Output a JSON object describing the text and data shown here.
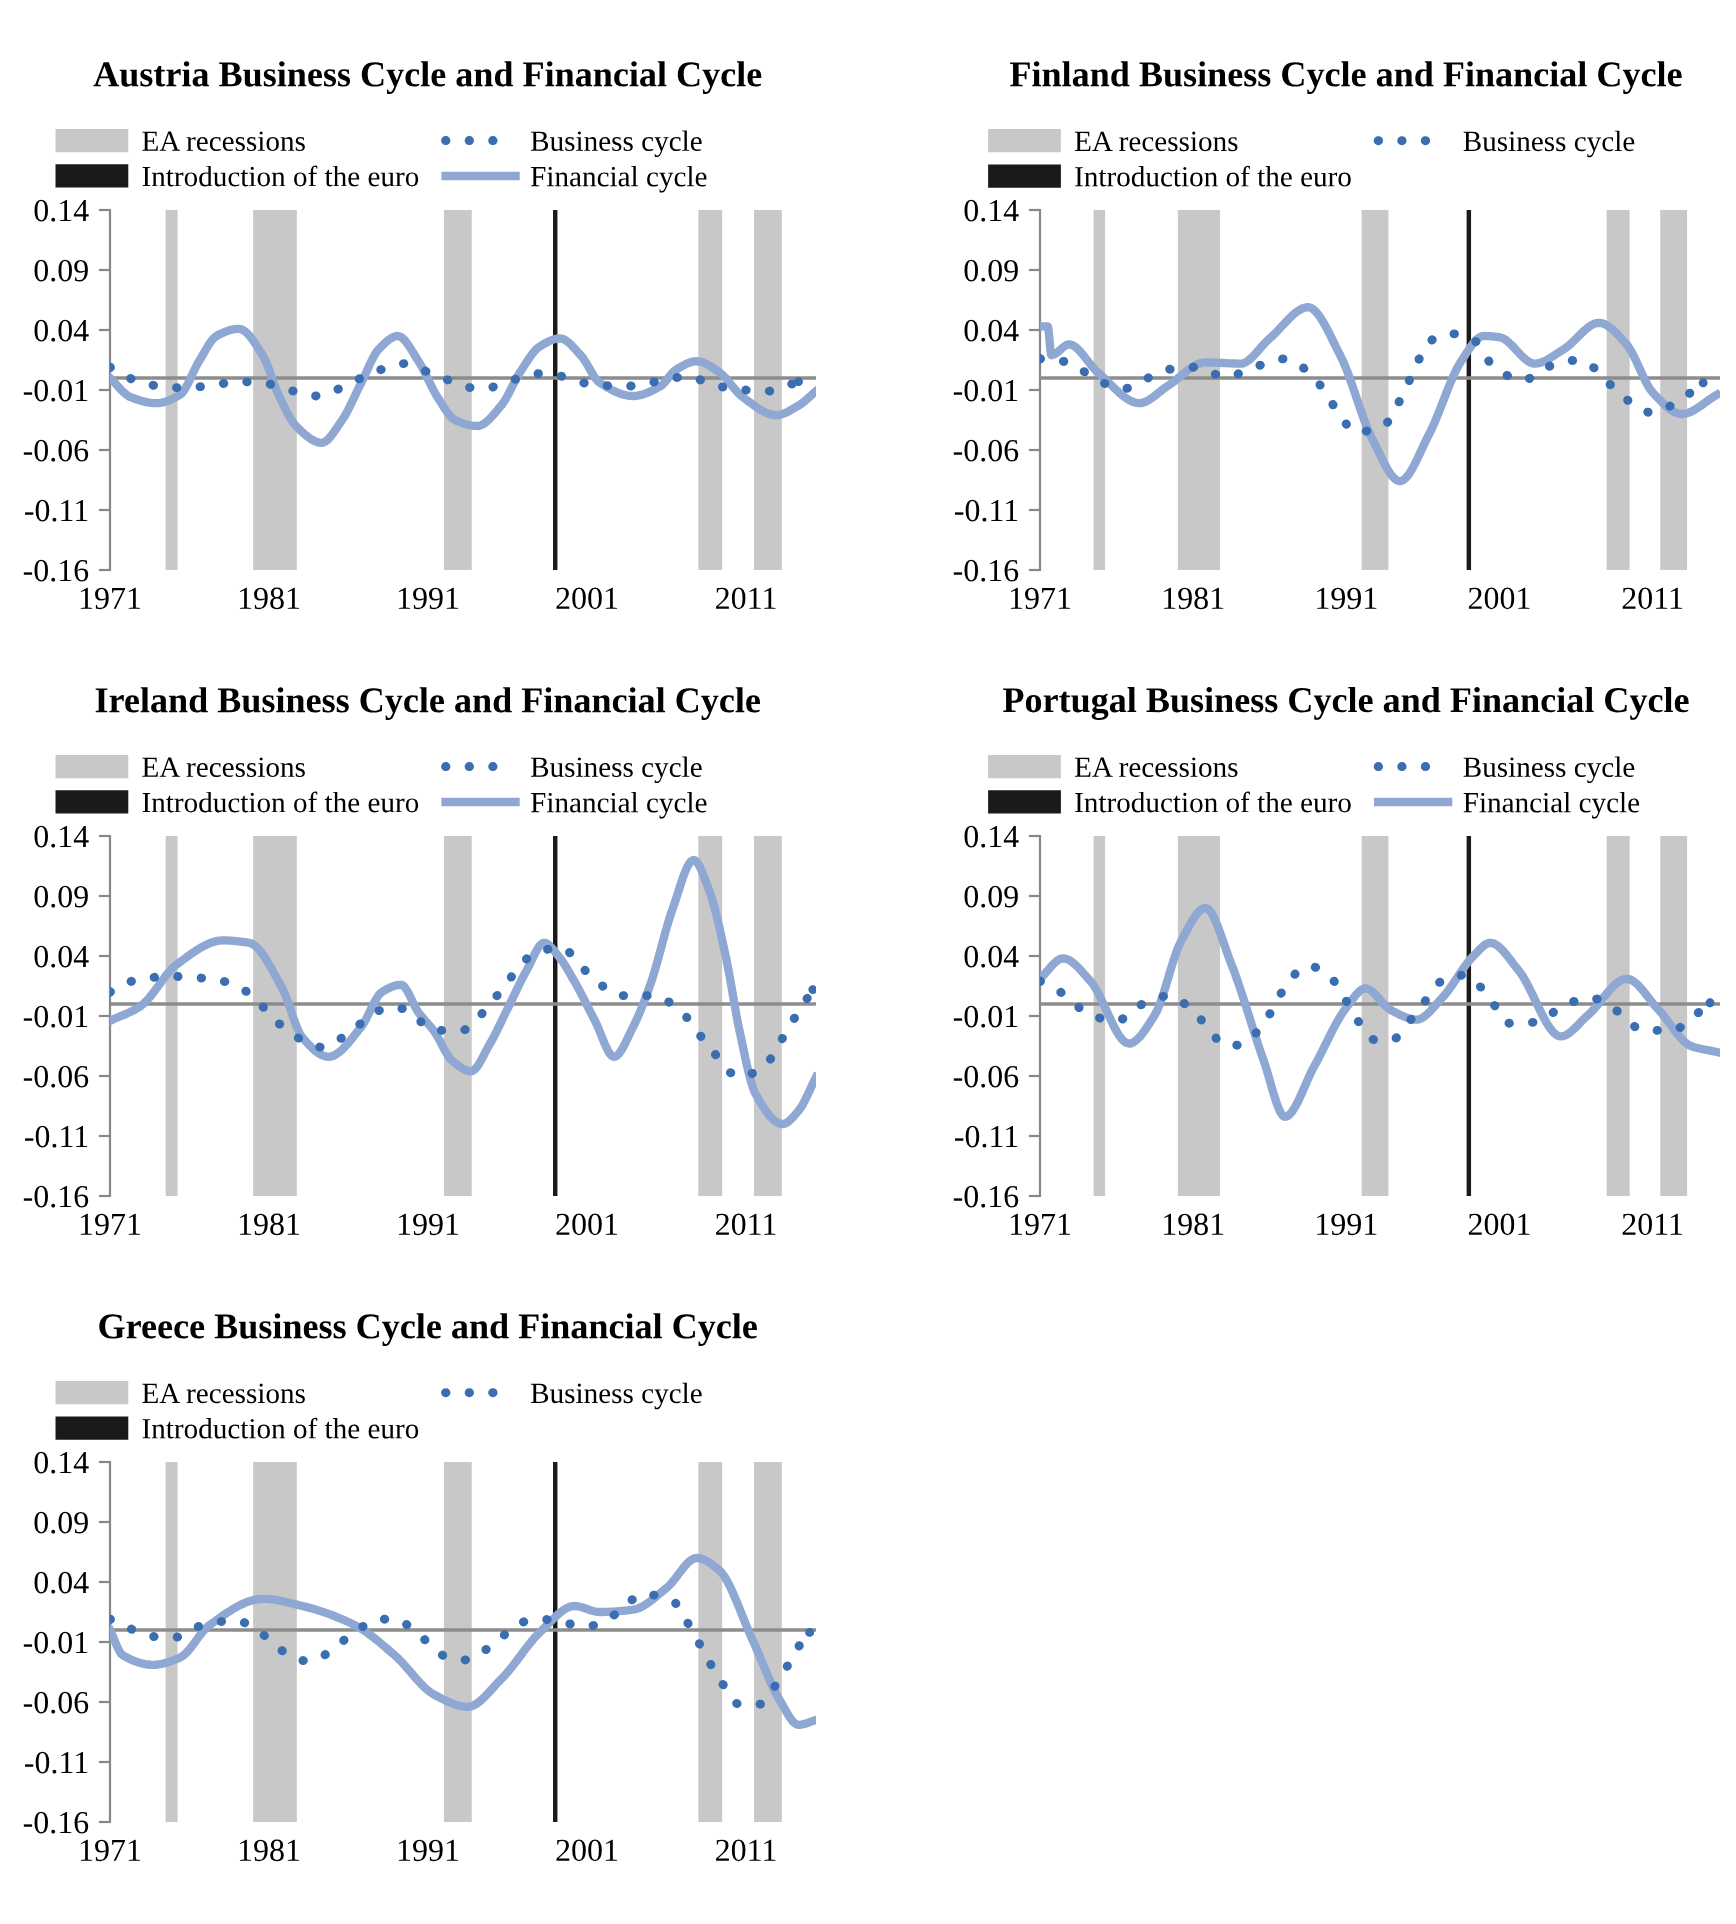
{
  "chart_data": [
    {
      "type": "line",
      "title": "Austria Business Cycle and Financial Cycle",
      "xlim": [
        1971,
        2015.4
      ],
      "xticks": [
        1971,
        1981,
        1991,
        2001,
        2011
      ],
      "ylim": [
        -0.16,
        0.14
      ],
      "yticks": [
        -0.16,
        -0.11,
        -0.06,
        -0.01,
        0.04,
        0.09,
        0.14
      ],
      "grid": false,
      "legend": "top",
      "bands": [
        {
          "axis": "x",
          "from": 1974.5,
          "to": 1975.25,
          "label": "EA recessions",
          "color": "#c8c8c8"
        },
        {
          "axis": "x",
          "from": 1980.0,
          "to": 1982.75,
          "color": "#c8c8c8"
        },
        {
          "axis": "x",
          "from": 1992.0,
          "to": 1993.75,
          "color": "#c8c8c8"
        },
        {
          "axis": "x",
          "from": 2008.0,
          "to": 2009.5,
          "color": "#c8c8c8"
        },
        {
          "axis": "x",
          "from": 2011.5,
          "to": 2013.25,
          "color": "#c8c8c8"
        }
      ],
      "ref_lines": [
        {
          "axis": "x",
          "value": 1999,
          "label": "Introduction of the euro",
          "color": "#1a1a1a"
        },
        {
          "axis": "y",
          "value": 0,
          "color": "#8c8c8c"
        }
      ],
      "series": [
        {
          "name": "Business cycle",
          "color": "#3b6eb0",
          "line_style": "dotted",
          "x": [
            1971,
            1973,
            1975,
            1977,
            1979.1,
            1981,
            1983.9,
            1986.8,
            1989.5,
            1991,
            1994.3,
            1997.3,
            1998.3,
            2001.2,
            2003.3,
            2007.3,
            2009.3,
            2012.3,
            2014.3
          ],
          "values": [
            0.009,
            -0.004,
            -0.008,
            -0.007,
            -0.003,
            -0.005,
            -0.015,
            0.0,
            0.012,
            0.005,
            -0.009,
            0.002,
            0.004,
            -0.005,
            -0.007,
            0.001,
            -0.007,
            -0.011,
            -0.003
          ]
        },
        {
          "name": "Financial cycle",
          "color": "#8fa7d3",
          "line_style": "solid",
          "x": [
            1971,
            1972.3,
            1973.9,
            1975.4,
            1976.6,
            1977.7,
            1979.1,
            1980.6,
            1981.6,
            1982.7,
            1984.3,
            1985.6,
            1986.8,
            1987.9,
            1989.1,
            1990.4,
            1991.6,
            1992.7,
            1994.1,
            1995.6,
            1996.8,
            1998,
            1999.3,
            2000.6,
            2001.8,
            2003.9,
            2005.6,
            2006.6,
            2007.9,
            2009.3,
            2010.8,
            2012.9,
            2014.3,
            2015.4
          ],
          "values": [
            0.0,
            -0.016,
            -0.021,
            -0.014,
            0.014,
            0.035,
            0.041,
            0.019,
            -0.014,
            -0.04,
            -0.054,
            -0.035,
            -0.004,
            0.024,
            0.035,
            0.014,
            -0.016,
            -0.035,
            -0.04,
            -0.023,
            0.005,
            0.026,
            0.033,
            0.019,
            -0.004,
            -0.015,
            -0.007,
            0.007,
            0.014,
            0.005,
            -0.016,
            -0.031,
            -0.023,
            -0.011
          ]
        }
      ]
    },
    {
      "type": "line",
      "title": "Finland Business Cycle and Financial Cycle",
      "xlim": [
        1971,
        2015.4
      ],
      "xticks": [
        1971,
        1981,
        1991,
        2001,
        2011
      ],
      "ylim": [
        -0.16,
        0.14
      ],
      "yticks": [
        -0.16,
        -0.11,
        -0.06,
        -0.01,
        0.04,
        0.09,
        0.14
      ],
      "grid": false,
      "legend": "top",
      "bands": [
        {
          "axis": "x",
          "from": 1974.5,
          "to": 1975.25,
          "label": "EA recessions",
          "color": "#c8c8c8"
        },
        {
          "axis": "x",
          "from": 1980.0,
          "to": 1982.75,
          "color": "#c8c8c8"
        },
        {
          "axis": "x",
          "from": 1992.0,
          "to": 1993.75,
          "color": "#c8c8c8"
        },
        {
          "axis": "x",
          "from": 2008.0,
          "to": 2009.5,
          "color": "#c8c8c8"
        },
        {
          "axis": "x",
          "from": 2011.5,
          "to": 2013.25,
          "color": "#c8c8c8"
        }
      ],
      "ref_lines": [
        {
          "axis": "x",
          "value": 1999,
          "label": "Introduction of the euro",
          "color": "#1a1a1a"
        },
        {
          "axis": "y",
          "value": 0,
          "color": "#8c8c8c"
        }
      ],
      "series": [
        {
          "name": "Business cycle",
          "color": "#3b6eb0",
          "line_style": "dotted",
          "x": [
            1971,
            1972.9,
            1974.5,
            1976.4,
            1979.3,
            1981.2,
            1983.1,
            1985.2,
            1987,
            1988.7,
            1990.4,
            1991.6,
            1993.3,
            1995.2,
            1996.4,
            1997.7,
            1999.1,
            2000.6,
            2002.5,
            2004.3,
            2006.2,
            2007,
            2009.1,
            2011,
            2012.7,
            2014.3
          ],
          "values": [
            0.016,
            0.013,
            0.0,
            -0.009,
            0.007,
            0.009,
            0.001,
            0.01,
            0.016,
            0.003,
            -0.027,
            -0.045,
            -0.041,
            0.0,
            0.03,
            0.037,
            0.034,
            0.01,
            -0.002,
            0.01,
            0.015,
            0.01,
            -0.016,
            -0.029,
            -0.019,
            -0.004
          ]
        },
        {
          "color": "#8fa7d3",
          "line_style": "solid",
          "x": [
            1971,
            1971.5,
            1971.75,
            1972.9,
            1974.75,
            1977.5,
            1979.3,
            1981.8,
            1984.1,
            1986,
            1988.5,
            1990.6,
            1992.7,
            1994.5,
            1996.4,
            1998.5,
            1999.96,
            2001,
            2003.3,
            2005.2,
            2007.5,
            2009.3,
            2011,
            2012.9,
            2015.2
          ],
          "values": [
            0.043,
            0.043,
            0.019,
            0.028,
            0.005,
            -0.021,
            -0.007,
            0.013,
            0.012,
            0.033,
            0.059,
            0.019,
            -0.051,
            -0.086,
            -0.047,
            0.014,
            0.035,
            0.034,
            0.012,
            0.024,
            0.046,
            0.028,
            -0.012,
            -0.03,
            -0.014
          ]
        }
      ]
    },
    {
      "type": "line",
      "title": "Ireland Business Cycle and Financial Cycle",
      "xlim": [
        1971,
        2015.4
      ],
      "xticks": [
        1971,
        1981,
        1991,
        2001,
        2011
      ],
      "ylim": [
        -0.16,
        0.14
      ],
      "yticks": [
        -0.16,
        -0.11,
        -0.06,
        -0.01,
        0.04,
        0.09,
        0.14
      ],
      "grid": false,
      "legend": "top",
      "bands": [
        {
          "axis": "x",
          "from": 1974.5,
          "to": 1975.25,
          "label": "EA recessions",
          "color": "#c8c8c8"
        },
        {
          "axis": "x",
          "from": 1980.0,
          "to": 1982.75,
          "color": "#c8c8c8"
        },
        {
          "axis": "x",
          "from": 1992.0,
          "to": 1993.75,
          "color": "#c8c8c8"
        },
        {
          "axis": "x",
          "from": 2008.0,
          "to": 2009.5,
          "color": "#c8c8c8"
        },
        {
          "axis": "x",
          "from": 2011.5,
          "to": 2013.25,
          "color": "#c8c8c8"
        }
      ],
      "ref_lines": [
        {
          "axis": "x",
          "value": 1999,
          "label": "Introduction of the euro",
          "color": "#1a1a1a"
        },
        {
          "axis": "y",
          "value": 0,
          "color": "#8c8c8c"
        }
      ],
      "series": [
        {
          "name": "Business cycle",
          "color": "#3b6eb0",
          "line_style": "dotted",
          "x": [
            1971,
            1972.9,
            1975,
            1978.1,
            1979.75,
            1981.6,
            1984.3,
            1986.8,
            1988.5,
            1989.5,
            1991.4,
            1993.1,
            1995.2,
            1997.7,
            1999.3,
            2001.2,
            2003.1,
            2005.2,
            2006.8,
            2008.7,
            2010.6,
            2012.25,
            2013.7,
            2015.2
          ],
          "values": [
            0.01,
            0.021,
            0.023,
            0.019,
            0.009,
            -0.016,
            -0.036,
            -0.016,
            -0.003,
            -0.004,
            -0.022,
            -0.022,
            0.005,
            0.042,
            0.047,
            0.024,
            0.007,
            0.007,
            -0.005,
            -0.036,
            -0.061,
            -0.05,
            -0.019,
            0.012
          ]
        },
        {
          "name": "Financial cycle",
          "color": "#8fa7d3",
          "line_style": "solid",
          "x": [
            1971,
            1972.9,
            1975.2,
            1978.1,
            1979.75,
            1981.8,
            1983.1,
            1984.75,
            1986.8,
            1988.1,
            1989.3,
            1990.4,
            1991.4,
            1992.5,
            1993.7,
            1994.9,
            1996,
            1997.2,
            1998.3,
            1999.2,
            2000.2,
            2001.5,
            2002.7,
            2003.9,
            2005,
            2006.4,
            2007.7,
            2008.7,
            2009.75,
            2010.6,
            2011.6,
            2013.3,
            2014.3,
            2015.4
          ],
          "values": [
            -0.014,
            -0.002,
            0.033,
            0.053,
            0.051,
            0.014,
            -0.028,
            -0.044,
            -0.019,
            0.01,
            0.016,
            -0.007,
            -0.023,
            -0.047,
            -0.056,
            -0.033,
            -0.004,
            0.028,
            0.051,
            0.04,
            0.019,
            -0.014,
            -0.044,
            -0.019,
            0.017,
            0.08,
            0.12,
            0.094,
            0.038,
            -0.023,
            -0.075,
            -0.1,
            -0.089,
            -0.061
          ]
        }
      ]
    },
    {
      "type": "line",
      "title": "Portugal Business Cycle and Financial Cycle",
      "xlim": [
        1971,
        2015.4
      ],
      "xticks": [
        1971,
        1981,
        1991,
        2001,
        2011
      ],
      "ylim": [
        -0.16,
        0.14
      ],
      "yticks": [
        -0.16,
        -0.11,
        -0.06,
        -0.01,
        0.04,
        0.09,
        0.14
      ],
      "grid": false,
      "legend": "top",
      "bands": [
        {
          "axis": "x",
          "from": 1974.5,
          "to": 1975.25,
          "label": "EA recessions",
          "color": "#c8c8c8"
        },
        {
          "axis": "x",
          "from": 1980.0,
          "to": 1982.75,
          "color": "#c8c8c8"
        },
        {
          "axis": "x",
          "from": 1992.0,
          "to": 1993.75,
          "color": "#c8c8c8"
        },
        {
          "axis": "x",
          "from": 2008.0,
          "to": 2009.5,
          "color": "#c8c8c8"
        },
        {
          "axis": "x",
          "from": 2011.5,
          "to": 2013.25,
          "color": "#c8c8c8"
        }
      ],
      "ref_lines": [
        {
          "axis": "x",
          "value": 1999,
          "label": "Introduction of the euro",
          "color": "#1a1a1a"
        },
        {
          "axis": "y",
          "value": 0,
          "color": "#8c8c8c"
        }
      ],
      "series": [
        {
          "name": "Business cycle",
          "color": "#3b6eb0",
          "line_style": "dotted",
          "x": [
            1971,
            1972.7,
            1974.1,
            1976,
            1977.7,
            1979.5,
            1981.2,
            1983.3,
            1984.3,
            1985.6,
            1987.5,
            1988.5,
            1990.2,
            1991.6,
            1992.9,
            1993.9,
            1995.8,
            1997.7,
            1998.7,
            2000.2,
            2001.6,
            2003.5,
            2005.2,
            2007,
            2008.7,
            2010.4,
            2012.25,
            2013.9,
            2014.75
          ],
          "values": [
            0.019,
            0.007,
            -0.008,
            -0.014,
            0.0,
            0.007,
            -0.009,
            -0.035,
            -0.033,
            -0.016,
            0.023,
            0.032,
            0.019,
            -0.011,
            -0.03,
            -0.03,
            -0.003,
            0.023,
            0.024,
            0.008,
            -0.016,
            -0.015,
            -0.001,
            0.005,
            -0.006,
            -0.022,
            -0.022,
            -0.008,
            0.001
          ]
        },
        {
          "name": "Financial cycle",
          "color": "#8fa7d3",
          "line_style": "solid",
          "x": [
            1971,
            1972.5,
            1974.3,
            1976.8,
            1978.5,
            1980.2,
            1981.8,
            1983.5,
            1985.6,
            1987,
            1988.9,
            1991,
            1992.25,
            1993.9,
            1995.6,
            1997.25,
            1999.3,
            2000.4,
            2002.25,
            2005,
            2006.8,
            2009.3,
            2011.4,
            2013.5,
            2015.2
          ],
          "values": [
            0.021,
            0.038,
            0.019,
            -0.033,
            -0.009,
            0.052,
            0.08,
            0.033,
            -0.047,
            -0.094,
            -0.052,
            -0.003,
            0.013,
            -0.005,
            -0.013,
            0.005,
            0.04,
            0.051,
            0.028,
            -0.027,
            -0.009,
            0.021,
            -0.005,
            -0.035,
            -0.04
          ]
        }
      ]
    },
    {
      "type": "line",
      "title": "Greece Business Cycle and Financial Cycle",
      "xlim": [
        1971,
        2015.4
      ],
      "xticks": [
        1971,
        1981,
        1991,
        2001,
        2011
      ],
      "ylim": [
        -0.16,
        0.14
      ],
      "yticks": [
        -0.16,
        -0.11,
        -0.06,
        -0.01,
        0.04,
        0.09,
        0.14
      ],
      "grid": false,
      "legend": "top",
      "bands": [
        {
          "axis": "x",
          "from": 1974.5,
          "to": 1975.25,
          "label": "EA recessions",
          "color": "#c8c8c8"
        },
        {
          "axis": "x",
          "from": 1980.0,
          "to": 1982.75,
          "color": "#c8c8c8"
        },
        {
          "axis": "x",
          "from": 1992.0,
          "to": 1993.75,
          "color": "#c8c8c8"
        },
        {
          "axis": "x",
          "from": 2008.0,
          "to": 2009.5,
          "color": "#c8c8c8"
        },
        {
          "axis": "x",
          "from": 2011.5,
          "to": 2013.25,
          "color": "#c8c8c8"
        }
      ],
      "ref_lines": [
        {
          "axis": "x",
          "value": 1999,
          "label": "Introduction of the euro",
          "color": "#1a1a1a"
        },
        {
          "axis": "y",
          "value": 0,
          "color": "#8c8c8c"
        }
      ],
      "series": [
        {
          "name": "Business cycle",
          "color": "#3b6eb0",
          "line_style": "dotted",
          "x": [
            1971,
            1972.9,
            1974.1,
            1975.1,
            1976.8,
            1978.9,
            1980.75,
            1982.5,
            1983.5,
            1986,
            1987.9,
            1988.9,
            1990.6,
            1992.25,
            1993.3,
            1995.2,
            1996.8,
            1998.1,
            1999.96,
            2001,
            2002.9,
            2004.5,
            2006.4,
            2007.7,
            2009.3,
            2010.6,
            2011.8,
            2013.1,
            2014.3,
            2015
          ],
          "values": [
            0.009,
            -0.002,
            -0.006,
            -0.006,
            0.004,
            0.008,
            -0.005,
            -0.023,
            -0.026,
            -0.006,
            0.009,
            0.009,
            -0.006,
            -0.023,
            -0.025,
            -0.011,
            0.006,
            0.009,
            0.005,
            0.003,
            0.014,
            0.03,
            0.024,
            -0.003,
            -0.04,
            -0.062,
            -0.062,
            -0.041,
            -0.014,
            -0.002
          ]
        },
        {
          "color": "#8fa7d3",
          "line_style": "solid",
          "x": [
            1971,
            1971.8,
            1973.7,
            1975.4,
            1977.25,
            1980.6,
            1983.1,
            1986.4,
            1988.9,
            1991.4,
            1993.5,
            1995.6,
            1998.1,
            2000.2,
            2001.8,
            2003.9,
            2006,
            2007.9,
            2009.3,
            2011.4,
            2013.1,
            2014.3,
            2015.4
          ],
          "values": [
            0.0,
            -0.021,
            -0.029,
            -0.023,
            0.004,
            0.026,
            0.02,
            0.004,
            -0.021,
            -0.054,
            -0.064,
            -0.041,
            -0.001,
            0.02,
            0.015,
            0.017,
            0.035,
            0.06,
            0.05,
            -0.008,
            -0.058,
            -0.079,
            -0.075
          ]
        }
      ]
    }
  ]
}
